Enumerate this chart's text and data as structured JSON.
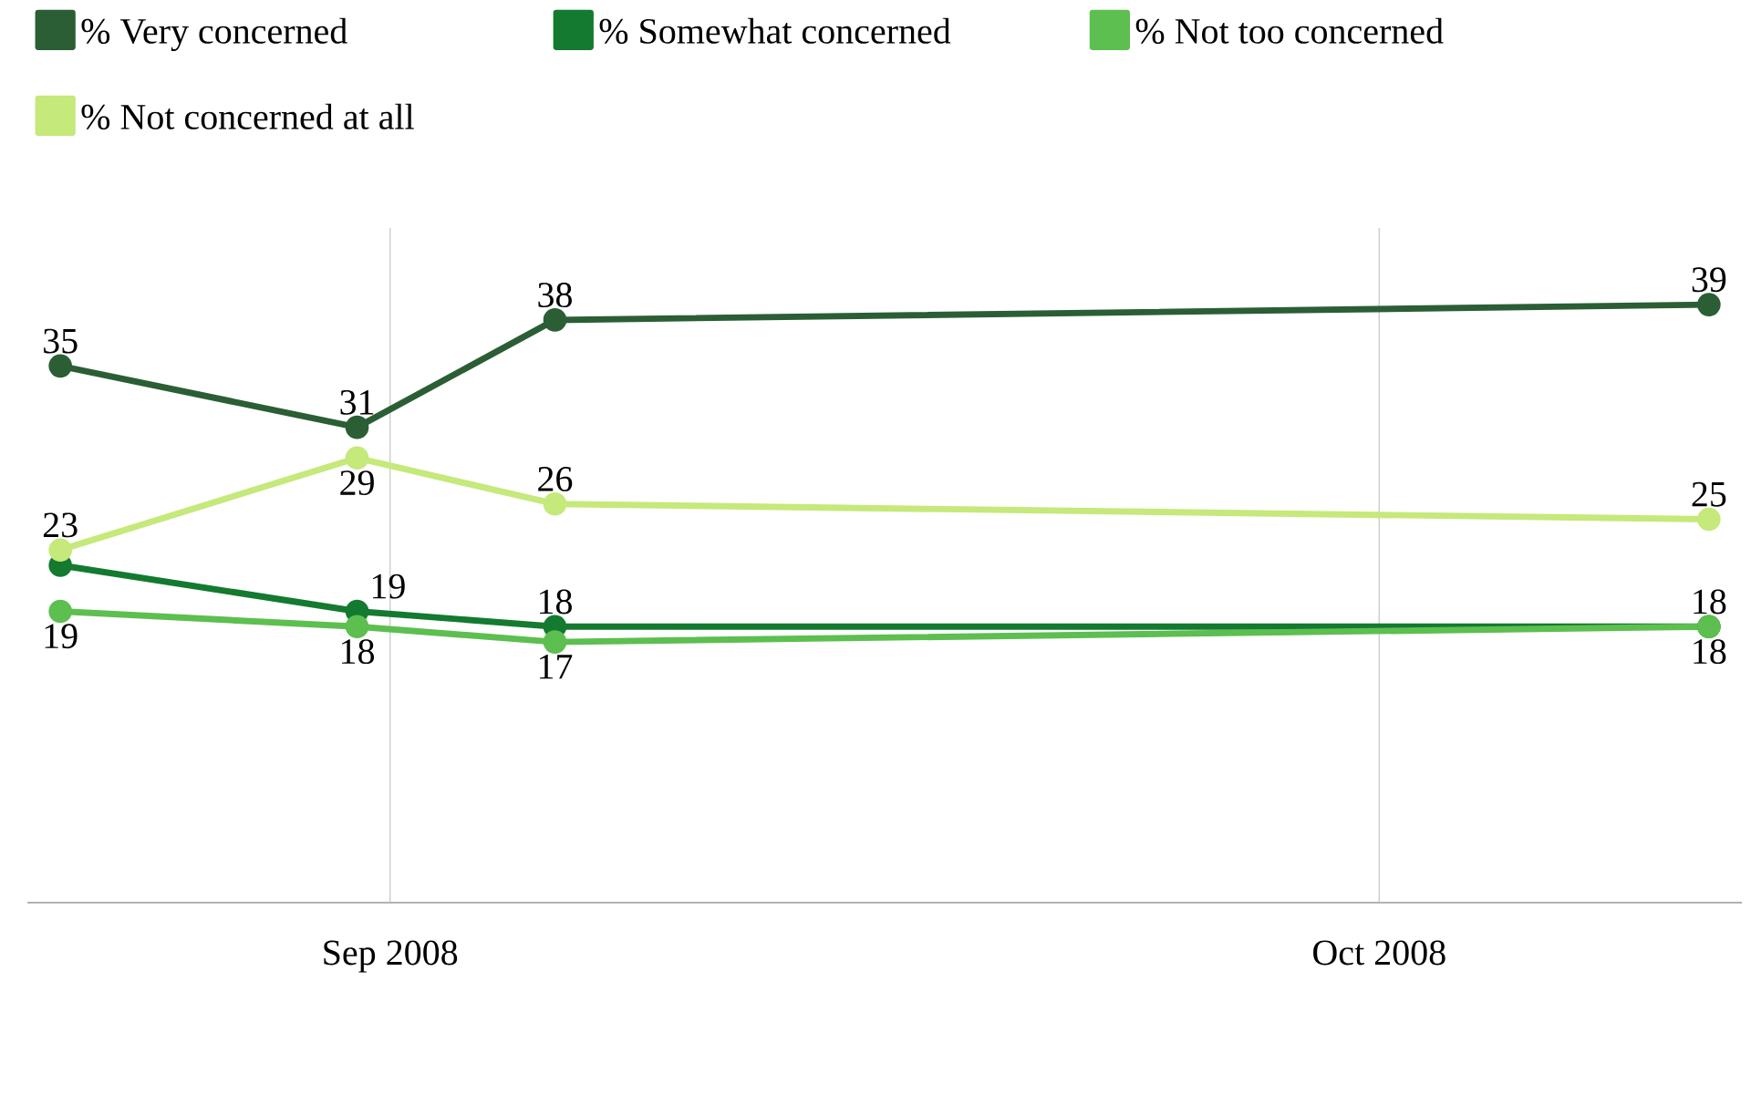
{
  "chart_data": {
    "type": "line",
    "x": [
      "2008-08-22",
      "2008-08-31",
      "2008-09-06",
      "2008-10-11"
    ],
    "xlim": [
      "2008-08-21",
      "2008-10-12"
    ],
    "xticks": [
      {
        "value": "2008-09-01",
        "label": "Sep 2008"
      },
      {
        "value": "2008-10-01",
        "label": "Oct 2008"
      }
    ],
    "ylim": [
      0,
      44
    ],
    "tick_labels": "x",
    "grid": "x",
    "legend": "top",
    "marker": "circle",
    "line_style": "solid",
    "series": [
      {
        "name": "% Very concerned",
        "color": "#2b5e35",
        "values": [
          35,
          31,
          38,
          39
        ],
        "value_labels": [
          "35",
          "31",
          "38",
          "39"
        ]
      },
      {
        "name": "% Somewhat concerned",
        "color": "#137a30",
        "values": [
          22,
          19,
          18,
          18
        ],
        "value_labels": [
          null,
          "19",
          "18",
          "18"
        ]
      },
      {
        "name": "% Not too concerned",
        "color": "#5cbf4f",
        "values": [
          19,
          18,
          17,
          18
        ],
        "value_labels": [
          "19",
          "18",
          "17",
          "18"
        ]
      },
      {
        "name": "% Not concerned at all",
        "color": "#c5e97a",
        "values": [
          23,
          29,
          26,
          25
        ],
        "value_labels": [
          "23",
          "29",
          "26",
          "25"
        ]
      }
    ]
  }
}
